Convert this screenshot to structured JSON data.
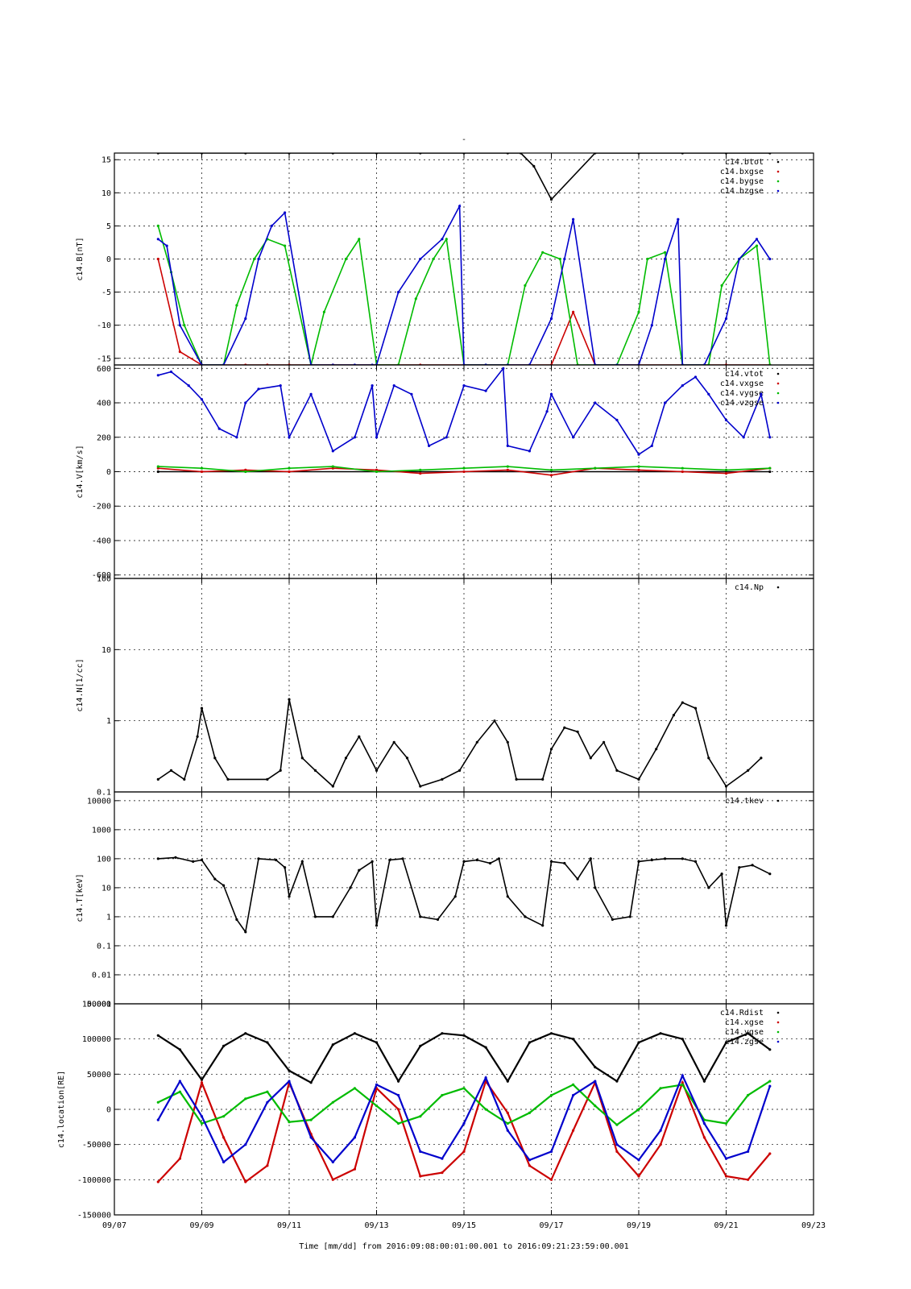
{
  "figure": {
    "title": "-",
    "xlabel": "Time [mm/dd]  from 2016:09:08:00:01:00.001  to  2016:09:21:23:59:00.001"
  },
  "chart_data": [
    {
      "type": "scatter",
      "ylabel": "c14.B[nT]",
      "ylim": [
        -16,
        16
      ],
      "yscale": "linear",
      "yticks": [
        -15,
        -10,
        -5,
        0,
        5,
        10,
        15
      ],
      "xlim": [
        "09/07",
        "09/23"
      ],
      "xticks": [
        "09/07",
        "09/09",
        "09/11",
        "09/13",
        "09/15",
        "09/17",
        "09/19",
        "09/21",
        "09/23"
      ],
      "grid": true,
      "legend": "top-right",
      "series": [
        {
          "name": "c14.btot",
          "color": "#000000",
          "x": [
            8.0,
            9.0,
            10.0,
            11.0,
            12.0,
            13.0,
            14.0,
            15.0,
            16.0,
            16.3,
            16.6,
            17.0,
            18.0,
            19.0,
            20.0,
            21.0,
            22.0
          ],
          "y": [
            16,
            16,
            16,
            16,
            16,
            16,
            16,
            16,
            16,
            16,
            14,
            9,
            16,
            16,
            16,
            16,
            16
          ]
        },
        {
          "name": "c14.bxgse",
          "color": "#cc0000",
          "x": [
            8.0,
            8.5,
            9.0,
            10.0,
            10.5,
            11.0,
            12.0,
            13.0,
            14.0,
            15.0,
            16.0,
            17.0,
            17.5,
            18.0,
            19.0,
            20.0,
            21.0,
            22.0
          ],
          "y": [
            0,
            -14,
            -16,
            -16,
            -16,
            -16,
            -16,
            -16,
            -16,
            -16,
            -16,
            -16,
            -8,
            -16,
            -16,
            -16,
            -16,
            -16
          ]
        },
        {
          "name": "c14.bygse",
          "color": "#00bb00",
          "x": [
            8.0,
            8.3,
            8.6,
            9.0,
            9.5,
            9.8,
            10.2,
            10.5,
            10.9,
            11.5,
            11.8,
            12.3,
            12.6,
            13.0,
            13.5,
            13.9,
            14.3,
            14.6,
            15.0,
            15.5,
            16.0,
            16.4,
            16.8,
            17.2,
            17.6,
            18.0,
            18.5,
            19.0,
            19.2,
            19.6,
            20.0,
            20.6,
            20.9,
            21.3,
            21.7,
            22.0
          ],
          "y": [
            5,
            -2,
            -10,
            -16,
            -16,
            -7,
            0,
            3,
            2,
            -16,
            -8,
            0,
            3,
            -16,
            -16,
            -6,
            0,
            3,
            -16,
            -16,
            -16,
            -4,
            1,
            0,
            -16,
            -16,
            -16,
            -8,
            0,
            1,
            -16,
            -16,
            -4,
            0,
            2,
            -16
          ]
        },
        {
          "name": "c14.bzgse",
          "color": "#0000cc",
          "x": [
            8.0,
            8.2,
            8.5,
            9.0,
            9.5,
            10.0,
            10.3,
            10.6,
            10.9,
            11.5,
            12.0,
            12.5,
            12.9,
            13.0,
            13.5,
            14.0,
            14.5,
            14.9,
            15.0,
            15.5,
            16.0,
            16.5,
            17.0,
            17.3,
            17.5,
            18.0,
            18.5,
            19.0,
            19.3,
            19.6,
            19.9,
            20.0,
            20.5,
            21.0,
            21.3,
            21.7,
            22.0
          ],
          "y": [
            3,
            2,
            -10,
            -16,
            -16,
            -9,
            0,
            5,
            7,
            -16,
            -16,
            -16,
            -16,
            -16,
            -5,
            0,
            3,
            8,
            -16,
            -16,
            -16,
            -16,
            -9,
            0,
            6,
            -16,
            -16,
            -16,
            -10,
            0,
            6,
            -16,
            -16,
            -9,
            0,
            3,
            0
          ]
        }
      ]
    },
    {
      "type": "scatter",
      "ylabel": "c14.V[km/s]",
      "ylim": [
        -620,
        620
      ],
      "yscale": "linear",
      "yticks": [
        -600,
        -400,
        -200,
        0,
        200,
        400,
        600
      ],
      "xlim": [
        "09/07",
        "09/23"
      ],
      "xticks": [
        "09/07",
        "09/09",
        "09/11",
        "09/13",
        "09/15",
        "09/17",
        "09/19",
        "09/21",
        "09/23"
      ],
      "grid": true,
      "legend": "top-right",
      "series": [
        {
          "name": "c14.vtot",
          "color": "#000000",
          "x": [
            8.0,
            22.0
          ],
          "y": [
            0,
            0
          ]
        },
        {
          "name": "c14.vxgse",
          "color": "#cc0000",
          "x": [
            8.0,
            9.0,
            10.0,
            11.0,
            12.0,
            13.0,
            14.0,
            15.0,
            16.0,
            17.0,
            18.0,
            19.0,
            20.0,
            21.0,
            22.0
          ],
          "y": [
            20,
            0,
            10,
            0,
            20,
            10,
            -10,
            0,
            10,
            -20,
            20,
            10,
            0,
            -10,
            20
          ]
        },
        {
          "name": "c14.vygse",
          "color": "#00bb00",
          "x": [
            8.0,
            9.0,
            10.0,
            11.0,
            12.0,
            13.0,
            14.0,
            15.0,
            16.0,
            17.0,
            18.0,
            19.0,
            20.0,
            21.0,
            22.0
          ],
          "y": [
            30,
            20,
            0,
            20,
            30,
            0,
            10,
            20,
            30,
            10,
            20,
            30,
            20,
            10,
            20
          ]
        },
        {
          "name": "c14.vzgse",
          "color": "#0000cc",
          "x": [
            8.0,
            8.3,
            8.7,
            9.0,
            9.4,
            9.8,
            10.0,
            10.3,
            10.8,
            11.0,
            11.5,
            12.0,
            12.5,
            12.9,
            13.0,
            13.4,
            13.8,
            14.2,
            14.6,
            15.0,
            15.5,
            15.9,
            16.0,
            16.5,
            16.9,
            17.0,
            17.5,
            18.0,
            18.5,
            19.0,
            19.3,
            19.6,
            20.0,
            20.3,
            20.6,
            21.0,
            21.4,
            21.8,
            22.0
          ],
          "y": [
            560,
            580,
            500,
            420,
            250,
            200,
            400,
            480,
            500,
            200,
            450,
            120,
            200,
            500,
            200,
            500,
            450,
            150,
            200,
            500,
            470,
            600,
            150,
            120,
            350,
            450,
            200,
            400,
            300,
            100,
            150,
            400,
            500,
            550,
            450,
            300,
            200,
            450,
            200
          ]
        }
      ]
    },
    {
      "type": "scatter",
      "ylabel": "c14.N[1/cc]",
      "ylim": [
        0.1,
        100
      ],
      "yscale": "log",
      "yticks": [
        0.1,
        1,
        10,
        100
      ],
      "xlim": [
        "09/07",
        "09/23"
      ],
      "xticks": [
        "09/07",
        "09/09",
        "09/11",
        "09/13",
        "09/15",
        "09/17",
        "09/19",
        "09/21",
        "09/23"
      ],
      "grid": true,
      "legend": "top-right",
      "series": [
        {
          "name": "c14.Np",
          "color": "#000000",
          "x": [
            8.0,
            8.3,
            8.6,
            8.9,
            9.0,
            9.3,
            9.6,
            10.5,
            10.8,
            11.0,
            11.3,
            11.6,
            12.0,
            12.3,
            12.6,
            13.0,
            13.4,
            13.7,
            14.0,
            14.5,
            14.9,
            15.3,
            15.7,
            16.0,
            16.2,
            16.8,
            17.0,
            17.3,
            17.6,
            17.9,
            18.2,
            18.5,
            19.0,
            19.4,
            19.8,
            20.0,
            20.3,
            20.6,
            21.0,
            21.5,
            21.8
          ],
          "y": [
            0.15,
            0.2,
            0.15,
            0.6,
            1.5,
            0.3,
            0.15,
            0.15,
            0.2,
            2.0,
            0.3,
            0.2,
            0.12,
            0.3,
            0.6,
            0.2,
            0.5,
            0.3,
            0.12,
            0.15,
            0.2,
            0.5,
            1.0,
            0.5,
            0.15,
            0.15,
            0.4,
            0.8,
            0.7,
            0.3,
            0.5,
            0.2,
            0.15,
            0.4,
            1.2,
            1.8,
            1.5,
            0.3,
            0.12,
            0.2,
            0.3
          ]
        }
      ]
    },
    {
      "type": "scatter",
      "ylabel": "c14.T[keV]",
      "ylim": [
        0.001,
        20000
      ],
      "yscale": "log",
      "yticks": [
        0.001,
        0.01,
        0.1,
        1,
        10,
        100,
        1000,
        10000
      ],
      "yticklabels": [
        "0.001",
        "0.01",
        "0.1",
        "1",
        "10",
        "100",
        "1000",
        "10000"
      ],
      "xlim": [
        "09/07",
        "09/23"
      ],
      "xticks": [
        "09/07",
        "09/09",
        "09/11",
        "09/13",
        "09/15",
        "09/17",
        "09/19",
        "09/21",
        "09/23"
      ],
      "grid": true,
      "legend": "top-right",
      "series": [
        {
          "name": "c14.tkev",
          "color": "#000000",
          "x": [
            8.0,
            8.4,
            8.8,
            9.0,
            9.3,
            9.5,
            9.8,
            10.0,
            10.3,
            10.7,
            10.9,
            11.0,
            11.3,
            11.6,
            12.0,
            12.4,
            12.6,
            12.9,
            13.0,
            13.3,
            13.6,
            14.0,
            14.4,
            14.8,
            15.0,
            15.3,
            15.6,
            15.8,
            16.0,
            16.4,
            16.8,
            17.0,
            17.3,
            17.6,
            17.9,
            18.0,
            18.4,
            18.8,
            19.0,
            19.3,
            19.6,
            20.0,
            20.3,
            20.6,
            20.9,
            21.0,
            21.3,
            21.6,
            22.0
          ],
          "y": [
            100,
            110,
            80,
            90,
            20,
            12,
            0.8,
            0.3,
            100,
            90,
            50,
            5,
            80,
            1,
            1,
            10,
            40,
            80,
            0.5,
            90,
            100,
            1,
            0.8,
            5,
            80,
            90,
            70,
            100,
            5,
            1,
            0.5,
            80,
            70,
            20,
            100,
            10,
            0.8,
            1,
            80,
            90,
            100,
            100,
            80,
            10,
            30,
            0.5,
            50,
            60,
            30
          ]
        }
      ]
    },
    {
      "type": "line",
      "ylabel": "c14.location[RE]",
      "ylim": [
        -150000,
        150000
      ],
      "yscale": "linear",
      "yticks": [
        -150000,
        -100000,
        -50000,
        0,
        50000,
        100000,
        150000
      ],
      "xlim": [
        "09/07",
        "09/23"
      ],
      "xticks": [
        "09/07",
        "09/09",
        "09/11",
        "09/13",
        "09/15",
        "09/17",
        "09/19",
        "09/21",
        "09/23"
      ],
      "grid": true,
      "legend": "top-right",
      "series": [
        {
          "name": "c14.Rdist",
          "color": "#000000",
          "x": [
            8.0,
            8.5,
            9.0,
            9.5,
            10.0,
            10.5,
            11.0,
            11.5,
            12.0,
            12.5,
            13.0,
            13.5,
            14.0,
            14.5,
            15.0,
            15.5,
            16.0,
            16.5,
            17.0,
            17.5,
            18.0,
            18.5,
            19.0,
            19.5,
            20.0,
            20.5,
            21.0,
            21.5,
            22.0
          ],
          "y": [
            105000,
            85000,
            42000,
            90000,
            108000,
            95000,
            55000,
            38000,
            92000,
            108000,
            95000,
            40000,
            90000,
            108000,
            105000,
            88000,
            40000,
            95000,
            108000,
            100000,
            60000,
            40000,
            95000,
            108000,
            100000,
            40000,
            95000,
            108000,
            85000
          ]
        },
        {
          "name": "c14.xgse",
          "color": "#cc0000",
          "x": [
            8.0,
            8.5,
            9.0,
            9.5,
            10.0,
            10.5,
            11.0,
            11.5,
            12.0,
            12.5,
            13.0,
            13.5,
            14.0,
            14.5,
            15.0,
            15.5,
            16.0,
            16.5,
            17.0,
            17.5,
            18.0,
            18.5,
            19.0,
            19.5,
            20.0,
            20.5,
            21.0,
            21.5,
            22.0
          ],
          "y": [
            -103000,
            -70000,
            38000,
            -40000,
            -103000,
            -80000,
            38000,
            -35000,
            -100000,
            -85000,
            30000,
            0,
            -95000,
            -90000,
            -60000,
            40000,
            -5000,
            -80000,
            -100000,
            -30000,
            38000,
            -60000,
            -95000,
            -50000,
            38000,
            -40000,
            -95000,
            -100000,
            -63000
          ]
        },
        {
          "name": "c14.ygse",
          "color": "#00bb00",
          "x": [
            8.0,
            8.5,
            9.0,
            9.5,
            10.0,
            10.5,
            11.0,
            11.5,
            12.0,
            12.5,
            13.0,
            13.5,
            14.0,
            14.5,
            15.0,
            15.5,
            16.0,
            16.5,
            17.0,
            17.5,
            18.0,
            18.5,
            19.0,
            19.5,
            20.0,
            20.5,
            21.0,
            21.5,
            22.0
          ],
          "y": [
            10000,
            25000,
            -20000,
            -10000,
            15000,
            25000,
            -18000,
            -15000,
            10000,
            30000,
            5000,
            -20000,
            -10000,
            20000,
            30000,
            0,
            -20000,
            -5000,
            20000,
            35000,
            5000,
            -22000,
            0,
            30000,
            35000,
            -15000,
            -20000,
            20000,
            40000
          ]
        },
        {
          "name": "c14.zgse",
          "color": "#0000cc",
          "x": [
            8.0,
            8.5,
            9.0,
            9.5,
            10.0,
            10.5,
            11.0,
            11.5,
            12.0,
            12.5,
            13.0,
            13.5,
            14.0,
            14.5,
            15.0,
            15.5,
            16.0,
            16.5,
            17.0,
            17.5,
            18.0,
            18.5,
            19.0,
            19.5,
            20.0,
            20.5,
            21.0,
            21.5,
            22.0
          ],
          "y": [
            -15000,
            40000,
            -10000,
            -75000,
            -50000,
            10000,
            40000,
            -40000,
            -75000,
            -40000,
            35000,
            20000,
            -60000,
            -70000,
            -20000,
            45000,
            -30000,
            -72000,
            -60000,
            20000,
            40000,
            -50000,
            -72000,
            -30000,
            48000,
            -20000,
            -70000,
            -60000,
            33000
          ]
        }
      ]
    }
  ]
}
